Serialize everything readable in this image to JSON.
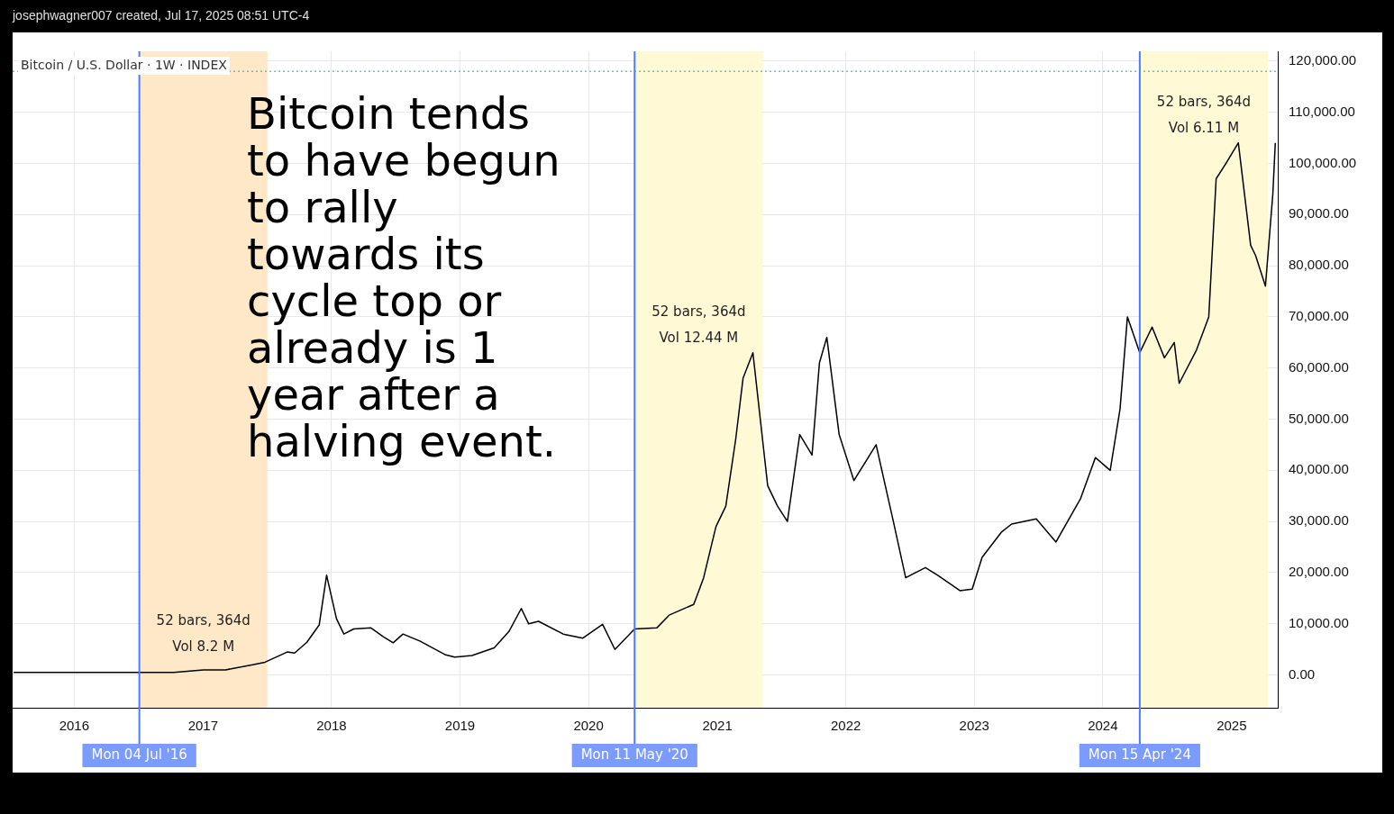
{
  "chart_data": {
    "type": "line",
    "subtitle": "josephwagner007 created, Jul 17, 2025 08:51 UTC-4",
    "title": "Bitcoin / U.S. Dollar · 1W · INDEX",
    "x": [
      "2015-07-13",
      "2015-10-12",
      "2016-01-11",
      "2016-05-09",
      "2016-07-04",
      "2016-10-10",
      "2017-01-02",
      "2017-03-06",
      "2017-05-22",
      "2017-06-26",
      "2017-08-28",
      "2017-09-18",
      "2017-10-23",
      "2017-11-27",
      "2017-12-18",
      "2018-01-15",
      "2018-02-05",
      "2018-03-05",
      "2018-04-23",
      "2018-05-28",
      "2018-06-25",
      "2018-07-23",
      "2018-09-10",
      "2018-11-19",
      "2018-12-17",
      "2019-02-04",
      "2019-04-08",
      "2019-05-20",
      "2019-06-24",
      "2019-07-15",
      "2019-08-12",
      "2019-10-21",
      "2019-12-16",
      "2020-02-10",
      "2020-03-16",
      "2020-05-11",
      "2020-07-13",
      "2020-08-17",
      "2020-10-26",
      "2020-11-23",
      "2020-12-28",
      "2021-01-25",
      "2021-02-22",
      "2021-03-15",
      "2021-04-12",
      "2021-05-24",
      "2021-06-21",
      "2021-07-19",
      "2021-08-23",
      "2021-09-27",
      "2021-10-18",
      "2021-11-08",
      "2021-12-13",
      "2022-01-24",
      "2022-03-28",
      "2022-05-16",
      "2022-06-20",
      "2022-08-15",
      "2022-09-19",
      "2022-11-21",
      "2022-12-26",
      "2023-01-23",
      "2023-03-20",
      "2023-04-17",
      "2023-06-26",
      "2023-08-21",
      "2023-10-30",
      "2023-12-11",
      "2024-01-22",
      "2024-02-19",
      "2024-03-11",
      "2024-04-15",
      "2024-05-20",
      "2024-06-24",
      "2024-07-22",
      "2024-08-05",
      "2024-09-23",
      "2024-10-28",
      "2024-11-18",
      "2024-12-16",
      "2025-01-20",
      "2025-02-24",
      "2025-03-10",
      "2025-04-07",
      "2025-04-28",
      "2025-05-05"
    ],
    "series": [
      {
        "color": "#000000",
        "values": [
          500,
          500,
          500,
          500,
          500,
          500,
          1000,
          1000,
          2000,
          2500,
          4500,
          4300,
          6400,
          9800,
          19500,
          11000,
          8000,
          9000,
          9200,
          7500,
          6300,
          8000,
          6600,
          4000,
          3500,
          3800,
          5300,
          8500,
          13000,
          10000,
          10500,
          8000,
          7200,
          9900,
          5000,
          9000,
          9200,
          11700,
          13800,
          19000,
          29000,
          33000,
          46000,
          58000,
          63000,
          37000,
          33000,
          30000,
          47000,
          43000,
          61000,
          66000,
          47000,
          38000,
          45000,
          30000,
          19000,
          21000,
          19500,
          16500,
          16800,
          23000,
          28000,
          29500,
          30500,
          26000,
          34500,
          42500,
          40000,
          52000,
          70000,
          63000,
          68000,
          62000,
          65000,
          57000,
          63500,
          70000,
          97000,
          100000,
          104000,
          84000,
          82000,
          76000,
          94000,
          104000
        ]
      }
    ],
    "xlim": [
      "2015-07-10",
      "2025-05-12"
    ],
    "xticks": [
      {
        "value": "2016-01-01",
        "label": "2016"
      },
      {
        "value": "2017-01-01",
        "label": "2017"
      },
      {
        "value": "2018-01-01",
        "label": "2018"
      },
      {
        "value": "2019-01-01",
        "label": "2019"
      },
      {
        "value": "2020-01-01",
        "label": "2020"
      },
      {
        "value": "2021-01-01",
        "label": "2021"
      },
      {
        "value": "2022-01-01",
        "label": "2022"
      },
      {
        "value": "2023-01-01",
        "label": "2023"
      },
      {
        "value": "2024-01-01",
        "label": "2024"
      },
      {
        "value": "2025-01-01",
        "label": "2025"
      }
    ],
    "ylim": [
      -6400,
      121900
    ],
    "yticks": [
      {
        "value": 0,
        "label": "0.00"
      },
      {
        "value": 10000,
        "label": "10,000.00"
      },
      {
        "value": 20000,
        "label": "20,000.00"
      },
      {
        "value": 30000,
        "label": "30,000.00"
      },
      {
        "value": 40000,
        "label": "40,000.00"
      },
      {
        "value": 50000,
        "label": "50,000.00"
      },
      {
        "value": 60000,
        "label": "60,000.00"
      },
      {
        "value": 70000,
        "label": "70,000.00"
      },
      {
        "value": 80000,
        "label": "80,000.00"
      },
      {
        "value": 90000,
        "label": "90,000.00"
      },
      {
        "value": 100000,
        "label": "100,000.00"
      },
      {
        "value": 110000,
        "label": "110,000.00"
      },
      {
        "value": 120000,
        "label": "120,000.00"
      }
    ],
    "grid": true,
    "marker": "none",
    "line_style": "solid",
    "ref_lines": [
      {
        "axis": "x",
        "value": "2016-07-04",
        "label": "Mon 04 Jul '16",
        "color": "#4a7cff"
      },
      {
        "axis": "x",
        "value": "2020-05-11",
        "label": "Mon 11 May '20",
        "color": "#4a7cff"
      },
      {
        "axis": "x",
        "value": "2024-04-15",
        "label": "Mon 15 Apr '24",
        "color": "#4a7cff"
      },
      {
        "axis": "y",
        "value": 118000,
        "color": "#26a69a",
        "line_style": "dotted"
      }
    ],
    "bands": [
      {
        "axis": "x",
        "from": "2016-07-04",
        "to": "2017-07-03",
        "color": "#ffe8c8",
        "label": "52 bars, 364d\nVol 8.2 M"
      },
      {
        "axis": "x",
        "from": "2020-05-11",
        "to": "2021-05-10",
        "color": "#fff9d6",
        "label": "52 bars, 364d\nVol 12.44 M"
      },
      {
        "axis": "x",
        "from": "2024-04-15",
        "to": "2025-04-14",
        "color": "#fff9d6",
        "label": "52 bars, 364d\nVol 6.11 M"
      }
    ],
    "annotations": [
      "Bitcoin tends\nto have begun\nto rally\ntowards its\ncycle top or\nalready is 1\nyear after a\nhalving event."
    ]
  }
}
